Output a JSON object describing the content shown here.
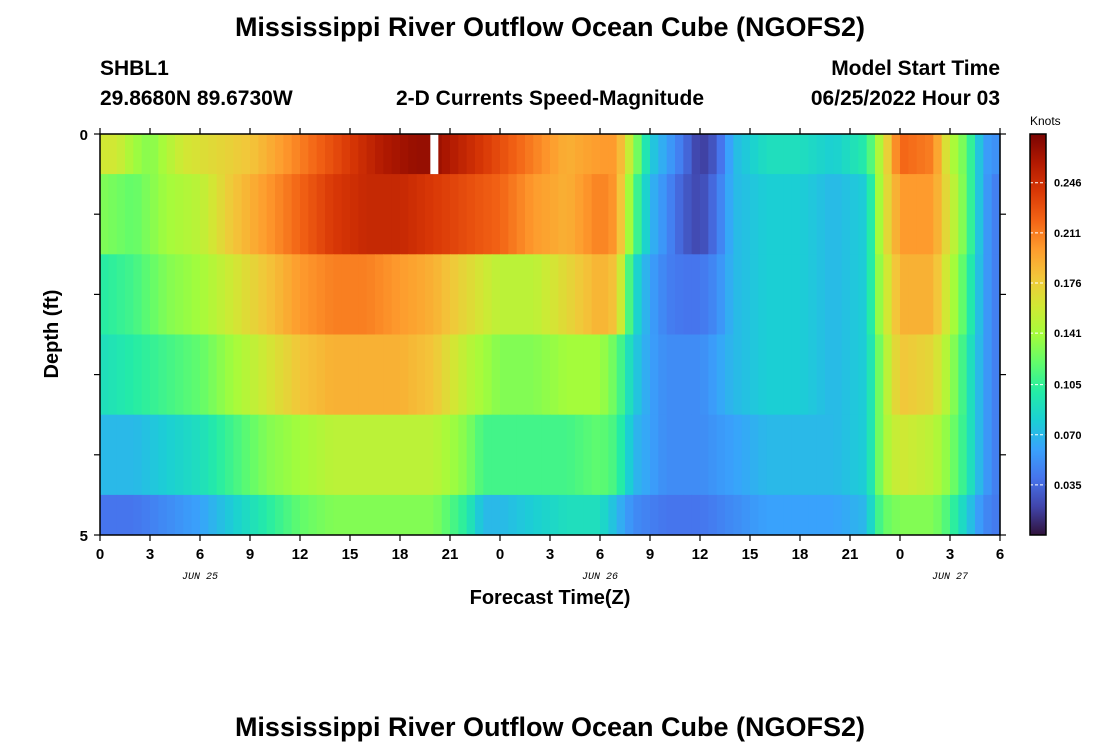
{
  "header": {
    "title": "Mississippi River Outflow Ocean Cube (NGOFS2)",
    "station_id": "SHBL1",
    "coordinates": "29.8680N  89.6730W",
    "subtitle": "2-D Currents Speed-Magnitude",
    "model_start_label": "Model Start Time",
    "model_start_value": "06/25/2022 Hour 03"
  },
  "footer": {
    "title": "Mississippi River Outflow Ocean Cube (NGOFS2)"
  },
  "chart_data": {
    "type": "heatmap",
    "ylabel": "Depth (ft)",
    "xlabel": "Forecast Time(Z)",
    "x_tick_labels": [
      "0",
      "3",
      "6",
      "9",
      "12",
      "15",
      "18",
      "21",
      "0",
      "3",
      "6",
      "9",
      "12",
      "15",
      "18",
      "21",
      "0",
      "3",
      "6"
    ],
    "date_labels": [
      {
        "text": "JUN 25",
        "tick_index": 2
      },
      {
        "text": "JUN 26",
        "tick_index": 10
      },
      {
        "text": "JUN 27",
        "tick_index": 17
      }
    ],
    "y_tick_labels": [
      "0",
      "5"
    ],
    "ylim": [
      0,
      5
    ],
    "x_hours_range": [
      0,
      54
    ],
    "colorbar": {
      "units": "Knots",
      "min": 0.0,
      "max": 0.28,
      "ticks": [
        "0.246",
        "0.211",
        "0.176",
        "0.141",
        "0.105",
        "0.070",
        "0.035"
      ],
      "colormap": [
        "#30123b",
        "#4145ab",
        "#4675ed",
        "#39a2fc",
        "#1bcfd4",
        "#24eca6",
        "#61fc6c",
        "#a4fc3b",
        "#d1e834",
        "#f3c63a",
        "#fe9b2d",
        "#f36315",
        "#d93806",
        "#b11901",
        "#7a0402"
      ]
    },
    "depth_layers": [
      0.0,
      0.5,
      1.5,
      2.5,
      3.5,
      4.5
    ],
    "speed_profiles": [
      [
        [
          0,
          0.16
        ],
        [
          1,
          0.16
        ],
        [
          2,
          0.14
        ],
        [
          3,
          0.13
        ],
        [
          5,
          0.16
        ],
        [
          7,
          0.17
        ],
        [
          9,
          0.18
        ],
        [
          11,
          0.2
        ],
        [
          13,
          0.22
        ],
        [
          15,
          0.24
        ],
        [
          17,
          0.26
        ],
        [
          19,
          0.27
        ],
        [
          20,
          0.27
        ],
        [
          22,
          0.25
        ],
        [
          24,
          0.23
        ],
        [
          26,
          0.21
        ],
        [
          28,
          0.19
        ],
        [
          30,
          0.2
        ],
        [
          31,
          0.2
        ],
        [
          32,
          0.14
        ],
        [
          33,
          0.08
        ],
        [
          34,
          0.06
        ],
        [
          35,
          0.04
        ],
        [
          36,
          0.015
        ],
        [
          37,
          0.03
        ],
        [
          38,
          0.07
        ],
        [
          40,
          0.09
        ],
        [
          42,
          0.09
        ],
        [
          44,
          0.08
        ],
        [
          46,
          0.1
        ],
        [
          46.5,
          0.13
        ],
        [
          47,
          0.16
        ],
        [
          48,
          0.22
        ],
        [
          50,
          0.21
        ],
        [
          51,
          0.15
        ],
        [
          52,
          0.12
        ],
        [
          53,
          0.06
        ],
        [
          54,
          0.05
        ]
      ],
      [
        [
          0,
          0.13
        ],
        [
          2,
          0.12
        ],
        [
          4,
          0.14
        ],
        [
          6,
          0.15
        ],
        [
          8,
          0.18
        ],
        [
          10,
          0.2
        ],
        [
          12,
          0.22
        ],
        [
          14,
          0.24
        ],
        [
          16,
          0.25
        ],
        [
          18,
          0.25
        ],
        [
          20,
          0.24
        ],
        [
          22,
          0.23
        ],
        [
          24,
          0.22
        ],
        [
          26,
          0.2
        ],
        [
          28,
          0.19
        ],
        [
          30,
          0.21
        ],
        [
          31,
          0.2
        ],
        [
          32,
          0.12
        ],
        [
          33,
          0.07
        ],
        [
          34,
          0.05
        ],
        [
          35,
          0.03
        ],
        [
          36,
          0.02
        ],
        [
          37,
          0.04
        ],
        [
          38,
          0.07
        ],
        [
          40,
          0.08
        ],
        [
          42,
          0.08
        ],
        [
          44,
          0.07
        ],
        [
          46,
          0.08
        ],
        [
          46.5,
          0.12
        ],
        [
          47,
          0.16
        ],
        [
          48,
          0.2
        ],
        [
          50,
          0.2
        ],
        [
          51,
          0.16
        ],
        [
          52,
          0.12
        ],
        [
          53,
          0.06
        ],
        [
          54,
          0.04
        ]
      ],
      [
        [
          0,
          0.1
        ],
        [
          2,
          0.11
        ],
        [
          4,
          0.13
        ],
        [
          6,
          0.14
        ],
        [
          8,
          0.16
        ],
        [
          10,
          0.18
        ],
        [
          12,
          0.2
        ],
        [
          14,
          0.21
        ],
        [
          16,
          0.21
        ],
        [
          18,
          0.2
        ],
        [
          20,
          0.19
        ],
        [
          22,
          0.17
        ],
        [
          24,
          0.15
        ],
        [
          26,
          0.15
        ],
        [
          28,
          0.17
        ],
        [
          30,
          0.19
        ],
        [
          31,
          0.18
        ],
        [
          32,
          0.09
        ],
        [
          33,
          0.06
        ],
        [
          34,
          0.045
        ],
        [
          35,
          0.04
        ],
        [
          36,
          0.04
        ],
        [
          37,
          0.05
        ],
        [
          38,
          0.07
        ],
        [
          40,
          0.08
        ],
        [
          42,
          0.08
        ],
        [
          44,
          0.07
        ],
        [
          46,
          0.08
        ],
        [
          46.5,
          0.12
        ],
        [
          47,
          0.15
        ],
        [
          48,
          0.19
        ],
        [
          50,
          0.19
        ],
        [
          51,
          0.15
        ],
        [
          52,
          0.11
        ],
        [
          53,
          0.06
        ],
        [
          54,
          0.04
        ]
      ],
      [
        [
          0,
          0.09
        ],
        [
          2,
          0.1
        ],
        [
          4,
          0.11
        ],
        [
          6,
          0.12
        ],
        [
          8,
          0.14
        ],
        [
          10,
          0.16
        ],
        [
          12,
          0.18
        ],
        [
          14,
          0.19
        ],
        [
          16,
          0.19
        ],
        [
          18,
          0.19
        ],
        [
          20,
          0.18
        ],
        [
          22,
          0.15
        ],
        [
          24,
          0.13
        ],
        [
          26,
          0.13
        ],
        [
          28,
          0.14
        ],
        [
          30,
          0.14
        ],
        [
          31,
          0.12
        ],
        [
          32,
          0.08
        ],
        [
          33,
          0.06
        ],
        [
          34,
          0.05
        ],
        [
          35,
          0.05
        ],
        [
          36,
          0.05
        ],
        [
          37,
          0.06
        ],
        [
          38,
          0.07
        ],
        [
          40,
          0.08
        ],
        [
          42,
          0.08
        ],
        [
          44,
          0.07
        ],
        [
          46,
          0.08
        ],
        [
          46.5,
          0.11
        ],
        [
          47,
          0.14
        ],
        [
          48,
          0.18
        ],
        [
          50,
          0.17
        ],
        [
          51,
          0.14
        ],
        [
          52,
          0.1
        ],
        [
          53,
          0.06
        ],
        [
          54,
          0.04
        ]
      ],
      [
        [
          0,
          0.07
        ],
        [
          2,
          0.07
        ],
        [
          4,
          0.08
        ],
        [
          6,
          0.09
        ],
        [
          8,
          0.11
        ],
        [
          10,
          0.13
        ],
        [
          12,
          0.14
        ],
        [
          14,
          0.15
        ],
        [
          16,
          0.15
        ],
        [
          18,
          0.15
        ],
        [
          20,
          0.15
        ],
        [
          22,
          0.13
        ],
        [
          23,
          0.11
        ],
        [
          24,
          0.11
        ],
        [
          26,
          0.11
        ],
        [
          28,
          0.11
        ],
        [
          30,
          0.12
        ],
        [
          31,
          0.11
        ],
        [
          32,
          0.07
        ],
        [
          34,
          0.05
        ],
        [
          36,
          0.05
        ],
        [
          38,
          0.06
        ],
        [
          40,
          0.07
        ],
        [
          42,
          0.07
        ],
        [
          44,
          0.07
        ],
        [
          46,
          0.08
        ],
        [
          46.5,
          0.11
        ],
        [
          47,
          0.14
        ],
        [
          48,
          0.16
        ],
        [
          50,
          0.15
        ],
        [
          51,
          0.13
        ],
        [
          52,
          0.1
        ],
        [
          53,
          0.06
        ],
        [
          54,
          0.04
        ]
      ],
      [
        [
          0,
          0.04
        ],
        [
          2,
          0.04
        ],
        [
          4,
          0.05
        ],
        [
          6,
          0.06
        ],
        [
          8,
          0.08
        ],
        [
          10,
          0.1
        ],
        [
          12,
          0.12
        ],
        [
          14,
          0.13
        ],
        [
          16,
          0.13
        ],
        [
          18,
          0.13
        ],
        [
          20,
          0.13
        ],
        [
          22,
          0.1
        ],
        [
          23,
          0.07
        ],
        [
          24,
          0.07
        ],
        [
          26,
          0.08
        ],
        [
          28,
          0.09
        ],
        [
          30,
          0.09
        ],
        [
          31,
          0.07
        ],
        [
          32,
          0.05
        ],
        [
          34,
          0.04
        ],
        [
          36,
          0.04
        ],
        [
          38,
          0.05
        ],
        [
          40,
          0.06
        ],
        [
          42,
          0.06
        ],
        [
          44,
          0.06
        ],
        [
          46,
          0.07
        ],
        [
          46.5,
          0.1
        ],
        [
          47,
          0.12
        ],
        [
          48,
          0.13
        ],
        [
          50,
          0.13
        ],
        [
          51,
          0.11
        ],
        [
          52,
          0.08
        ],
        [
          53,
          0.05
        ],
        [
          54,
          0.04
        ]
      ]
    ],
    "missing_data_hour": 20
  }
}
